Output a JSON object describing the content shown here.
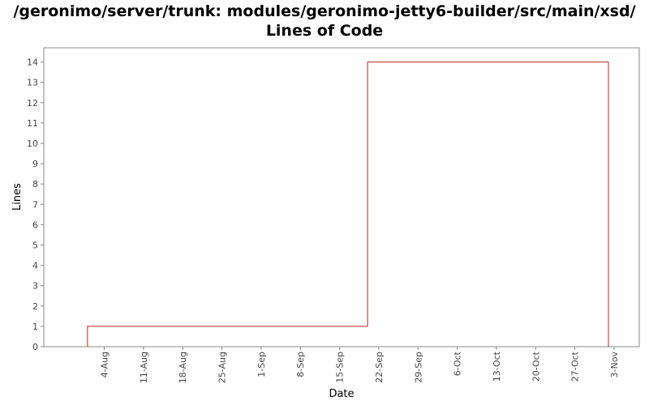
{
  "chart_data": {
    "type": "line",
    "step": true,
    "title": "/geronimo/server/trunk: modules/geronimo-jetty6-builder/src/main/xsd/",
    "subtitle": "Lines of Code",
    "xlabel": "Date",
    "ylabel": "Lines",
    "ylim": [
      0,
      14.7
    ],
    "yticks": [
      0,
      1,
      2,
      3,
      4,
      5,
      6,
      7,
      8,
      9,
      10,
      11,
      12,
      13,
      14
    ],
    "xticks": [
      "4-Aug",
      "11-Aug",
      "18-Aug",
      "25-Aug",
      "1-Sep",
      "8-Sep",
      "15-Sep",
      "22-Sep",
      "29-Sep",
      "6-Oct",
      "13-Oct",
      "20-Oct",
      "27-Oct",
      "3-Nov"
    ],
    "xlim_days": [
      -10.8,
      95.5
    ],
    "grid": false,
    "series": [
      {
        "color": "#b22222",
        "points": [
          {
            "x": "1-Aug",
            "day": -3,
            "y": 0
          },
          {
            "x": "1-Aug",
            "day": -3,
            "y": 1
          },
          {
            "x": "20-Sep",
            "day": 47,
            "y": 1
          },
          {
            "x": "20-Sep",
            "day": 47,
            "y": 14
          },
          {
            "x": "2-Nov",
            "day": 90,
            "y": 14
          },
          {
            "x": "2-Nov",
            "day": 90,
            "y": 0
          }
        ]
      }
    ]
  }
}
